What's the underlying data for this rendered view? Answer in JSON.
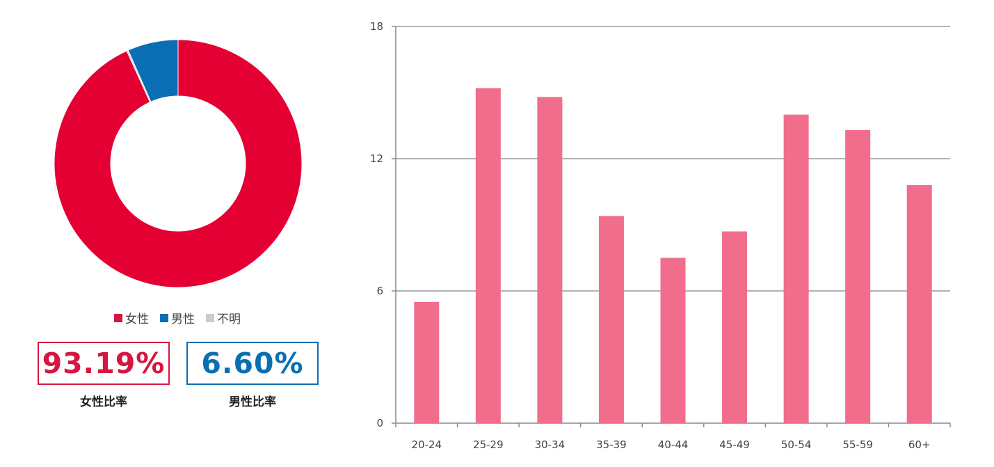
{
  "chart_data": [
    {
      "type": "pie",
      "style": "donut",
      "categories": [
        "女性",
        "男性",
        "不明"
      ],
      "values": [
        93.19,
        6.6,
        0.21
      ],
      "colors": [
        "#e50034",
        "#0a6eb4",
        "#cccccc"
      ],
      "legend": "bottom"
    },
    {
      "type": "bar",
      "categories": [
        "20-24",
        "25-29",
        "30-34",
        "35-39",
        "40-44",
        "45-49",
        "50-54",
        "55-59",
        "60+"
      ],
      "values": [
        5.5,
        15.2,
        14.8,
        9.4,
        7.5,
        8.7,
        14.0,
        13.3,
        10.8
      ],
      "ylim": [
        0,
        18
      ],
      "yticks": [
        0,
        6,
        12,
        18
      ],
      "grid": true,
      "bar_color": "#f06e8c",
      "xlabel": "",
      "ylabel": ""
    }
  ],
  "legend": {
    "items": [
      {
        "label": "女性",
        "color": "#d6163f"
      },
      {
        "label": "男性",
        "color": "#0a6eb4"
      },
      {
        "label": "不明",
        "color": "#cccccc"
      }
    ]
  },
  "ratios": {
    "female": {
      "value": "93.19%",
      "label": "女性比率",
      "color": "#d6163f"
    },
    "male": {
      "value": "6.60%",
      "label": "男性比率",
      "color": "#0a6eb4"
    }
  }
}
